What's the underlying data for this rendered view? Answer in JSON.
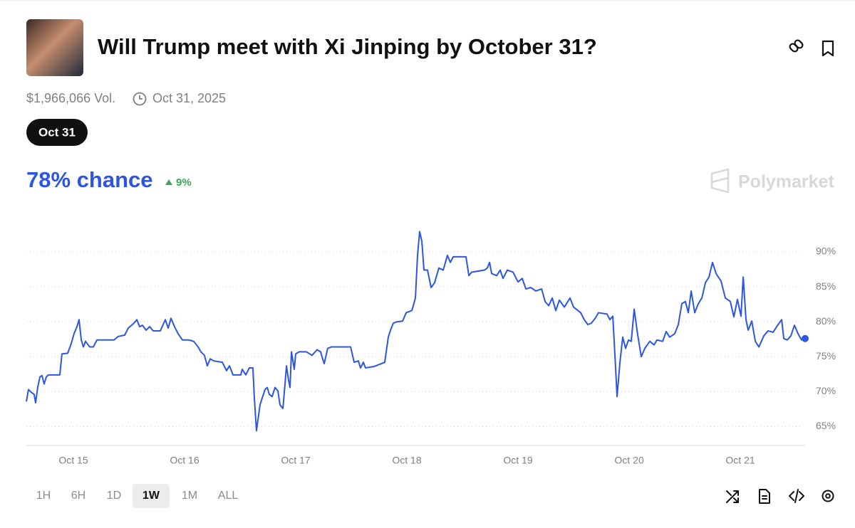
{
  "header": {
    "title": "Will Trump meet with Xi Jinping by October 31?",
    "volume": "$1,966,066 Vol.",
    "end_date": "Oct 31, 2025"
  },
  "tabs": [
    "Oct 31"
  ],
  "chance": "78% chance",
  "change": "9%",
  "brand": "Polymarket",
  "ranges": [
    "1H",
    "6H",
    "1D",
    "1W",
    "1M",
    "ALL"
  ],
  "selected_range": 3,
  "chart_data": {
    "type": "line",
    "color": "#2c55e0",
    "x": [
      14.577,
      14.596,
      14.622,
      14.647,
      14.66,
      14.679,
      14.699,
      14.718,
      14.737,
      14.756,
      14.776,
      14.801,
      14.878,
      14.897,
      14.949,
      14.981,
      15.006,
      15.032,
      15.051,
      15.071,
      15.09,
      15.109,
      15.147,
      15.179,
      15.212,
      15.365,
      15.404,
      15.462,
      15.494,
      15.545,
      15.571,
      15.596,
      15.622,
      15.654,
      15.686,
      15.718,
      15.782,
      15.827,
      15.853,
      15.878,
      15.91,
      15.942,
      15.981,
      16.038,
      16.083,
      16.122,
      16.147,
      16.179,
      16.205,
      16.231,
      16.263,
      16.34,
      16.378,
      16.404,
      16.436,
      16.506,
      16.519,
      16.551,
      16.583,
      16.615,
      16.628,
      16.647,
      16.679,
      16.699,
      16.724,
      16.744,
      16.763,
      16.788,
      16.814,
      16.84,
      16.859,
      16.885,
      16.904,
      16.917,
      16.936,
      16.949,
      16.962,
      16.987,
      17.0,
      17.032,
      17.096,
      17.147,
      17.192,
      17.224,
      17.256,
      17.288,
      17.321,
      17.494,
      17.526,
      17.564,
      17.583,
      17.609,
      17.628,
      17.705,
      17.801,
      17.833,
      17.853,
      17.878,
      17.91,
      17.962,
      17.994,
      18.045,
      18.077,
      18.096,
      18.115,
      18.135,
      18.154,
      18.186,
      18.218,
      18.25,
      18.288,
      18.327,
      18.365,
      18.391,
      18.417,
      18.532,
      18.558,
      18.583,
      18.699,
      18.724,
      18.744,
      18.763,
      18.808,
      18.84,
      18.865,
      18.904,
      18.955,
      19.0,
      19.038,
      19.071,
      19.115,
      19.16,
      19.212,
      19.244,
      19.276,
      19.308,
      19.34,
      19.372,
      19.417,
      19.468,
      19.5,
      19.564,
      19.596,
      19.628,
      19.66,
      19.699,
      19.724,
      19.801,
      19.827,
      19.853,
      19.872,
      19.891,
      19.917,
      19.942,
      19.968,
      19.994,
      20.019,
      20.045,
      20.077,
      20.109,
      20.141,
      20.186,
      20.224,
      20.25,
      20.301,
      20.333,
      20.365,
      20.41,
      20.442,
      20.474,
      20.506,
      20.532,
      20.558,
      20.59,
      20.622,
      20.654,
      20.686,
      20.718,
      20.75,
      20.782,
      20.827,
      20.865,
      20.91,
      20.942,
      20.974,
      21.006,
      21.026,
      21.051,
      21.071,
      21.103,
      21.135,
      21.167,
      21.212,
      21.25,
      21.295,
      21.327,
      21.372,
      21.391,
      21.423,
      21.455,
      21.487,
      21.519,
      21.551,
      21.583
    ],
    "values": [
      68.6,
      70.3,
      69.9,
      69.6,
      68.4,
      70.6,
      72.1,
      72.3,
      71.1,
      72.1,
      72.4,
      72.4,
      72.4,
      75.4,
      75.5,
      76.9,
      78.3,
      79.3,
      80.3,
      77.4,
      76.4,
      77.2,
      76.4,
      76.4,
      77.4,
      77.4,
      77.9,
      78.1,
      79.1,
      79.8,
      80.3,
      79.3,
      79.5,
      78.8,
      79.3,
      78.7,
      78.7,
      80.3,
      79.1,
      80.5,
      79.3,
      78.3,
      77.4,
      77.4,
      77.2,
      76.4,
      75.7,
      75.2,
      73.7,
      74.7,
      74.4,
      74.2,
      73.0,
      73.7,
      72.4,
      72.4,
      73.2,
      72.4,
      73.4,
      73.4,
      69.1,
      64.4,
      68.1,
      69.1,
      70.3,
      70.6,
      69.6,
      69.3,
      70.6,
      70.1,
      68.1,
      67.6,
      71.1,
      73.7,
      71.6,
      70.6,
      75.7,
      73.2,
      75.4,
      75.7,
      75.7,
      75.2,
      76.0,
      75.7,
      74.0,
      76.2,
      76.4,
      76.4,
      74.2,
      74.4,
      73.4,
      74.2,
      73.4,
      73.6,
      74.2,
      77.8,
      78.8,
      79.8,
      80.0,
      80.1,
      81.3,
      81.6,
      83.4,
      89.5,
      92.9,
      91.5,
      87.4,
      87.4,
      84.9,
      85.6,
      87.7,
      87.4,
      89.5,
      88.5,
      89.3,
      89.3,
      86.6,
      87.1,
      87.4,
      87.7,
      88.5,
      86.9,
      86.6,
      87.4,
      86.2,
      87.4,
      87.1,
      85.7,
      86.2,
      84.7,
      84.9,
      84.4,
      84.7,
      82.9,
      82.3,
      83.4,
      81.6,
      83.1,
      82.1,
      83.4,
      82.1,
      81.3,
      80.3,
      79.6,
      79.8,
      80.6,
      81.3,
      81.1,
      80.3,
      80.8,
      75.2,
      69.3,
      74.2,
      77.8,
      76.2,
      77.4,
      77.2,
      81.8,
      78.1,
      75.0,
      76.2,
      77.2,
      76.7,
      77.4,
      77.2,
      78.6,
      77.8,
      78.3,
      79.6,
      82.6,
      82.9,
      81.3,
      84.4,
      81.3,
      82.6,
      83.4,
      85.6,
      86.4,
      88.5,
      86.9,
      85.8,
      83.4,
      82.9,
      80.7,
      83.2,
      80.8,
      86.4,
      80.3,
      78.8,
      80.1,
      77.2,
      76.4,
      78.0,
      78.7,
      78.5,
      79.3,
      80.3,
      77.6,
      77.4,
      78.0,
      79.5,
      78.3,
      77.4,
      77.6
    ],
    "xlim": [
      14.577,
      21.583
    ],
    "ylim": [
      62.3,
      95.5
    ],
    "xticks": [
      {
        "value": 15,
        "label": "Oct 15"
      },
      {
        "value": 16,
        "label": "Oct 16"
      },
      {
        "value": 17,
        "label": "Oct 17"
      },
      {
        "value": 18,
        "label": "Oct 18"
      },
      {
        "value": 19,
        "label": "Oct 19"
      },
      {
        "value": 20,
        "label": "Oct 20"
      },
      {
        "value": 21,
        "label": "Oct 21"
      }
    ],
    "yticks": [
      {
        "value": 65,
        "label": "65%"
      },
      {
        "value": 70,
        "label": "70%"
      },
      {
        "value": 75,
        "label": "75%"
      },
      {
        "value": 80,
        "label": "80%"
      },
      {
        "value": 85,
        "label": "85%"
      },
      {
        "value": 90,
        "label": "90%"
      }
    ],
    "grid": true
  }
}
